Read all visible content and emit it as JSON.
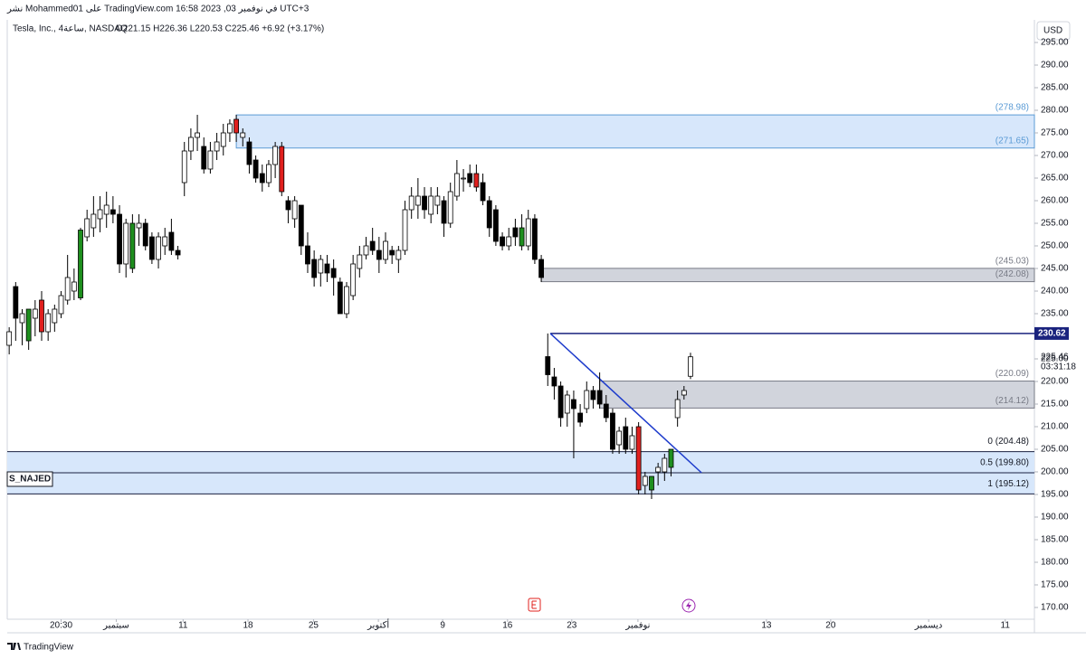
{
  "chart_data": {
    "type": "candlestick",
    "header": "نشر Mohammed01 على TradingView.com في نوفمبر 03, 2023 16:58 UTC+3",
    "title": "Tesla, Inc., 4ساعة, NASDAQ",
    "ohlc_text": "O221.15 H226.36 L220.53 C225.46 +6.92 (+3.17%)",
    "currency": "USD",
    "brand": "TradingView",
    "indicator_label": "S_NAJED",
    "countdown": "03:31:18",
    "last_price": {
      "value": 225.46,
      "label": "225.46"
    },
    "ylim": [
      167.4,
      300
    ],
    "xlim": [
      -0.3,
      158
    ],
    "yticks": [
      {
        "value": 170,
        "label": "170.00"
      },
      {
        "value": 175,
        "label": "175.00"
      },
      {
        "value": 180,
        "label": "180.00"
      },
      {
        "value": 185,
        "label": "185.00"
      },
      {
        "value": 190,
        "label": "190.00"
      },
      {
        "value": 195,
        "label": "195.00"
      },
      {
        "value": 200,
        "label": "200.00"
      },
      {
        "value": 205,
        "label": "205.00"
      },
      {
        "value": 210,
        "label": "210.00"
      },
      {
        "value": 215,
        "label": "215.00"
      },
      {
        "value": 220,
        "label": "220.00"
      },
      {
        "value": 225,
        "label": "225.00"
      },
      {
        "value": 230,
        "label": "230.00"
      },
      {
        "value": 235,
        "label": "235.00"
      },
      {
        "value": 240,
        "label": "240.00"
      },
      {
        "value": 245,
        "label": "245.00"
      },
      {
        "value": 250,
        "label": "250.00"
      },
      {
        "value": 255,
        "label": "255.00"
      },
      {
        "value": 260,
        "label": "260.00"
      },
      {
        "value": 265,
        "label": "265.00"
      },
      {
        "value": 270,
        "label": "270.00"
      },
      {
        "value": 275,
        "label": "275.00"
      },
      {
        "value": 280,
        "label": "280.00"
      },
      {
        "value": 285,
        "label": "285.00"
      },
      {
        "value": 290,
        "label": "290.00"
      },
      {
        "value": 295,
        "label": "295.00"
      }
    ],
    "xticks": [
      {
        "value": 8.0,
        "label": "20:30"
      },
      {
        "value": 16.5,
        "label": "سبتمبر"
      },
      {
        "value": 26.8,
        "label": "11"
      },
      {
        "value": 36.8,
        "label": "18"
      },
      {
        "value": 46.9,
        "label": "25"
      },
      {
        "value": 56.9,
        "label": "أكتوبر"
      },
      {
        "value": 66.8,
        "label": "9"
      },
      {
        "value": 76.8,
        "label": "16"
      },
      {
        "value": 86.7,
        "label": "23"
      },
      {
        "value": 96.9,
        "label": "نوفمبر"
      },
      {
        "value": 116.7,
        "label": "13"
      },
      {
        "value": 126.6,
        "label": "20"
      },
      {
        "value": 141.7,
        "label": "ديسمبر"
      },
      {
        "value": 153.5,
        "label": "11"
      }
    ],
    "ohlc": [
      [
        228,
        232,
        226,
        231
      ],
      [
        241,
        242,
        229,
        234
      ],
      [
        233,
        236,
        228,
        235
      ],
      [
        229,
        236,
        227,
        236
      ],
      [
        234,
        238,
        230,
        236
      ],
      [
        238,
        240,
        229,
        231
      ],
      [
        231,
        236,
        229,
        235
      ],
      [
        233,
        237,
        231,
        236
      ],
      [
        235,
        240,
        234,
        239
      ],
      [
        238,
        248,
        237,
        243
      ],
      [
        240,
        245,
        238,
        242
      ],
      [
        238.5,
        254,
        238,
        253.5
      ],
      [
        252,
        258,
        251,
        256
      ],
      [
        254,
        261,
        252,
        257
      ],
      [
        256,
        261,
        253,
        258
      ],
      [
        257,
        262,
        254,
        259
      ],
      [
        258,
        261,
        255,
        257
      ],
      [
        257,
        259,
        244,
        246
      ],
      [
        246,
        256,
        243,
        255
      ],
      [
        245,
        257,
        244,
        255
      ],
      [
        254,
        257,
        250,
        255
      ],
      [
        255,
        256,
        249,
        250
      ],
      [
        252,
        253,
        246,
        247
      ],
      [
        247,
        253,
        245,
        252
      ],
      [
        250,
        254,
        248,
        252
      ],
      [
        253,
        256,
        248,
        249
      ],
      [
        249,
        250,
        247,
        248
      ],
      [
        264,
        273,
        261,
        271
      ],
      [
        271,
        276,
        269,
        274
      ],
      [
        274,
        279,
        271,
        275
      ],
      [
        272,
        274,
        266,
        267
      ],
      [
        267,
        273,
        266,
        271
      ],
      [
        271,
        275,
        269,
        273
      ],
      [
        272,
        277,
        270,
        275
      ],
      [
        275,
        278,
        273,
        277
      ],
      [
        278,
        279,
        273,
        275
      ],
      [
        274,
        276,
        272,
        275
      ],
      [
        273,
        274,
        266,
        268
      ],
      [
        269,
        270,
        264,
        265
      ],
      [
        266,
        268,
        262,
        264
      ],
      [
        264,
        269,
        263,
        268
      ],
      [
        268,
        273,
        265,
        272
      ],
      [
        272,
        273,
        261,
        262
      ],
      [
        260,
        261,
        255,
        258
      ],
      [
        256,
        261,
        254,
        260
      ],
      [
        259,
        259,
        248,
        250
      ],
      [
        250,
        253,
        244,
        246
      ],
      [
        247,
        249,
        241,
        243
      ],
      [
        244,
        248,
        241,
        247
      ],
      [
        246,
        248,
        242,
        244
      ],
      [
        245,
        247,
        239,
        243
      ],
      [
        242,
        243,
        235,
        235
      ],
      [
        235,
        242,
        234,
        241
      ],
      [
        239,
        248,
        238,
        246
      ],
      [
        245,
        250,
        243,
        248
      ],
      [
        248,
        252,
        247,
        250
      ],
      [
        251,
        254,
        248,
        249
      ],
      [
        249,
        252,
        244,
        247
      ],
      [
        247,
        253,
        246,
        251
      ],
      [
        249,
        250,
        246,
        248
      ],
      [
        247,
        250,
        244,
        249
      ],
      [
        249,
        260,
        248,
        258
      ],
      [
        258,
        263,
        256,
        261
      ],
      [
        259,
        265,
        256,
        261
      ],
      [
        261,
        263,
        256,
        258
      ],
      [
        257,
        263,
        255,
        261
      ],
      [
        259,
        263,
        257,
        261
      ],
      [
        260,
        261,
        252,
        255
      ],
      [
        255,
        264,
        254,
        262
      ],
      [
        261,
        269,
        260,
        266
      ],
      [
        265,
        267,
        262,
        265
      ],
      [
        266,
        268,
        263,
        264
      ],
      [
        266,
        268,
        262,
        263
      ],
      [
        264,
        266,
        259,
        260
      ],
      [
        260,
        261,
        252,
        254
      ],
      [
        258,
        259,
        250,
        251
      ],
      [
        252,
        253,
        249,
        250
      ],
      [
        250,
        254,
        249,
        252
      ],
      [
        254,
        256,
        250,
        252
      ],
      [
        250,
        257,
        249,
        254
      ],
      [
        250,
        258,
        249,
        256
      ],
      [
        256,
        257,
        246,
        247
      ],
      [
        247,
        248,
        242,
        243
      ],
      [
        225.5,
        230.62,
        219,
        221.5
      ],
      [
        221,
        223,
        216,
        219
      ],
      [
        219,
        220,
        210,
        212
      ],
      [
        213,
        218,
        210,
        217
      ],
      [
        216,
        218,
        203,
        214
      ],
      [
        213,
        215,
        210,
        211
      ],
      [
        214,
        220,
        213,
        218
      ],
      [
        218,
        219,
        214,
        216
      ],
      [
        218,
        222,
        214,
        215
      ],
      [
        215,
        217,
        211,
        212
      ],
      [
        213,
        214,
        204,
        205
      ],
      [
        206,
        210,
        204,
        209
      ],
      [
        210,
        212,
        204,
        205
      ],
      [
        205,
        210,
        204,
        208
      ],
      [
        210,
        211,
        195,
        196
      ],
      [
        197,
        200,
        195,
        199
      ],
      [
        196,
        199,
        194,
        199
      ],
      [
        200,
        202,
        197,
        201
      ],
      [
        200,
        204,
        198,
        203
      ],
      [
        201,
        205,
        199,
        205
      ],
      [
        212,
        218,
        210,
        216
      ],
      [
        217,
        219,
        216,
        218
      ],
      [
        221.15,
        226.36,
        220.53,
        225.46
      ]
    ],
    "colors": [
      "#ffffff",
      "#000000",
      "#ffffff",
      "#1e8f1e",
      "#ffffff",
      "#e0201e",
      "#ffffff",
      "#ffffff",
      "#ffffff",
      "#ffffff",
      "#ffffff",
      "#1e8f1e",
      "#ffffff",
      "#ffffff",
      "#ffffff",
      "#ffffff",
      "#000000",
      "#000000",
      "#ffffff",
      "#1e8f1e",
      "#ffffff",
      "#000000",
      "#000000",
      "#ffffff",
      "#ffffff",
      "#000000",
      "#000000",
      "#ffffff",
      "#ffffff",
      "#ffffff",
      "#000000",
      "#ffffff",
      "#ffffff",
      "#ffffff",
      "#ffffff",
      "#e0201e",
      "#ffffff",
      "#000000",
      "#000000",
      "#000000",
      "#ffffff",
      "#ffffff",
      "#e0201e",
      "#000000",
      "#ffffff",
      "#000000",
      "#000000",
      "#000000",
      "#ffffff",
      "#000000",
      "#000000",
      "#000000",
      "#ffffff",
      "#ffffff",
      "#ffffff",
      "#ffffff",
      "#000000",
      "#000000",
      "#ffffff",
      "#000000",
      "#ffffff",
      "#ffffff",
      "#ffffff",
      "#ffffff",
      "#000000",
      "#ffffff",
      "#ffffff",
      "#000000",
      "#ffffff",
      "#ffffff",
      "#ffffff",
      "#000000",
      "#e0201e",
      "#000000",
      "#000000",
      "#000000",
      "#000000",
      "#ffffff",
      "#000000",
      "#1e8f1e",
      "#ffffff",
      "#000000",
      "#000000",
      "#000000",
      "#000000",
      "#000000",
      "#ffffff",
      "#000000",
      "#000000",
      "#ffffff",
      "#000000",
      "#000000",
      "#000000",
      "#000000",
      "#ffffff",
      "#000000",
      "#ffffff",
      "#e0201e",
      "#ffffff",
      "#1e8f1e",
      "#ffffff",
      "#ffffff",
      "#1e8f1e",
      "#ffffff",
      "#ffffff",
      "#ffffff"
    ],
    "zones": [
      {
        "top": 278.98,
        "bottom": 271.65,
        "top_label": "(278.98)",
        "bottom_label": "(271.65)",
        "x_start": 35,
        "fill": "#d7e7fb",
        "stroke": "#5b9bd5"
      },
      {
        "top": 245.03,
        "bottom": 242.08,
        "top_label": "(245.03)",
        "bottom_label": "(242.08)",
        "x_start": 82,
        "fill": "#d1d4dc",
        "stroke": "#787b86"
      },
      {
        "top": 220.09,
        "bottom": 214.12,
        "top_label": "(220.09)",
        "bottom_label": "(214.12)",
        "x_start": 91,
        "fill": "#d1d4dc",
        "stroke": "#787b86"
      }
    ],
    "fib": {
      "fill": "#d7e7fb",
      "stroke": "#1a2140",
      "levels": [
        {
          "value": 204.48,
          "label": "0 (204.48)"
        },
        {
          "value": 199.8,
          "label": "0.5 (199.80)"
        },
        {
          "value": 195.12,
          "label": "1 (195.12)"
        }
      ]
    },
    "level_line": {
      "value": 230.62,
      "label": "230.62",
      "x_start": 83.4,
      "color": "#1a237e"
    },
    "trendline": {
      "points": [
        [
          83.4,
          230.62
        ],
        [
          106.7,
          199.8
        ]
      ],
      "color": "#1e3ccc"
    }
  }
}
